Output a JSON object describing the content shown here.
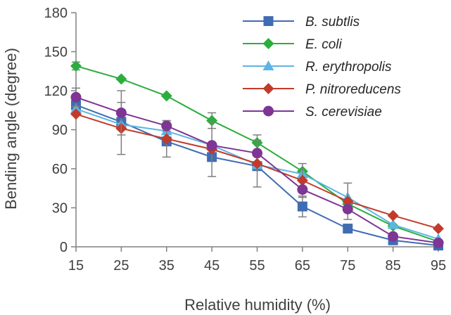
{
  "chart_data": {
    "type": "line",
    "title": "",
    "xlabel": "Relative humidity (%)",
    "ylabel": "Bending angle (degree)",
    "x": [
      15,
      25,
      35,
      45,
      55,
      65,
      75,
      85,
      95
    ],
    "xlim": [
      15,
      95
    ],
    "ylim": [
      0,
      180
    ],
    "yticks": [
      0,
      30,
      60,
      90,
      120,
      150,
      180
    ],
    "grid": false,
    "legend_position": "top-right",
    "series": [
      {
        "name": "B. subtlis",
        "color": "#3F6CB3",
        "marker": "square",
        "values": [
          109,
          96,
          81,
          69,
          62,
          31,
          14,
          5,
          1
        ],
        "errors": [
          0,
          0,
          0,
          0,
          0,
          8,
          0,
          0,
          0
        ]
      },
      {
        "name": "E. coli",
        "color": "#2BAE3E",
        "marker": "diamond",
        "values": [
          139,
          129,
          116,
          97,
          80,
          58,
          33,
          16,
          4
        ],
        "errors": [
          3,
          0,
          0,
          6,
          6,
          0,
          0,
          0,
          0
        ]
      },
      {
        "name": "R. erythropolis",
        "color": "#5DB5E4",
        "marker": "triangle",
        "values": [
          106,
          94,
          89,
          78,
          63,
          56,
          38,
          17,
          6
        ],
        "errors": [
          0,
          0,
          0,
          0,
          0,
          0,
          0,
          0,
          0
        ]
      },
      {
        "name": "P. nitroreducens",
        "color": "#C23B2A",
        "marker": "diamond",
        "values": [
          102,
          91,
          83,
          75,
          64,
          51,
          35,
          24,
          14
        ],
        "errors": [
          0,
          20,
          14,
          21,
          18,
          13,
          14,
          0,
          0
        ]
      },
      {
        "name": "S. cerevisiae",
        "color": "#7E3594",
        "marker": "circle",
        "values": [
          115,
          103,
          93,
          78,
          72,
          44,
          29,
          8,
          3
        ],
        "errors": [
          7,
          17,
          4,
          0,
          0,
          0,
          0,
          0,
          0
        ]
      }
    ]
  }
}
